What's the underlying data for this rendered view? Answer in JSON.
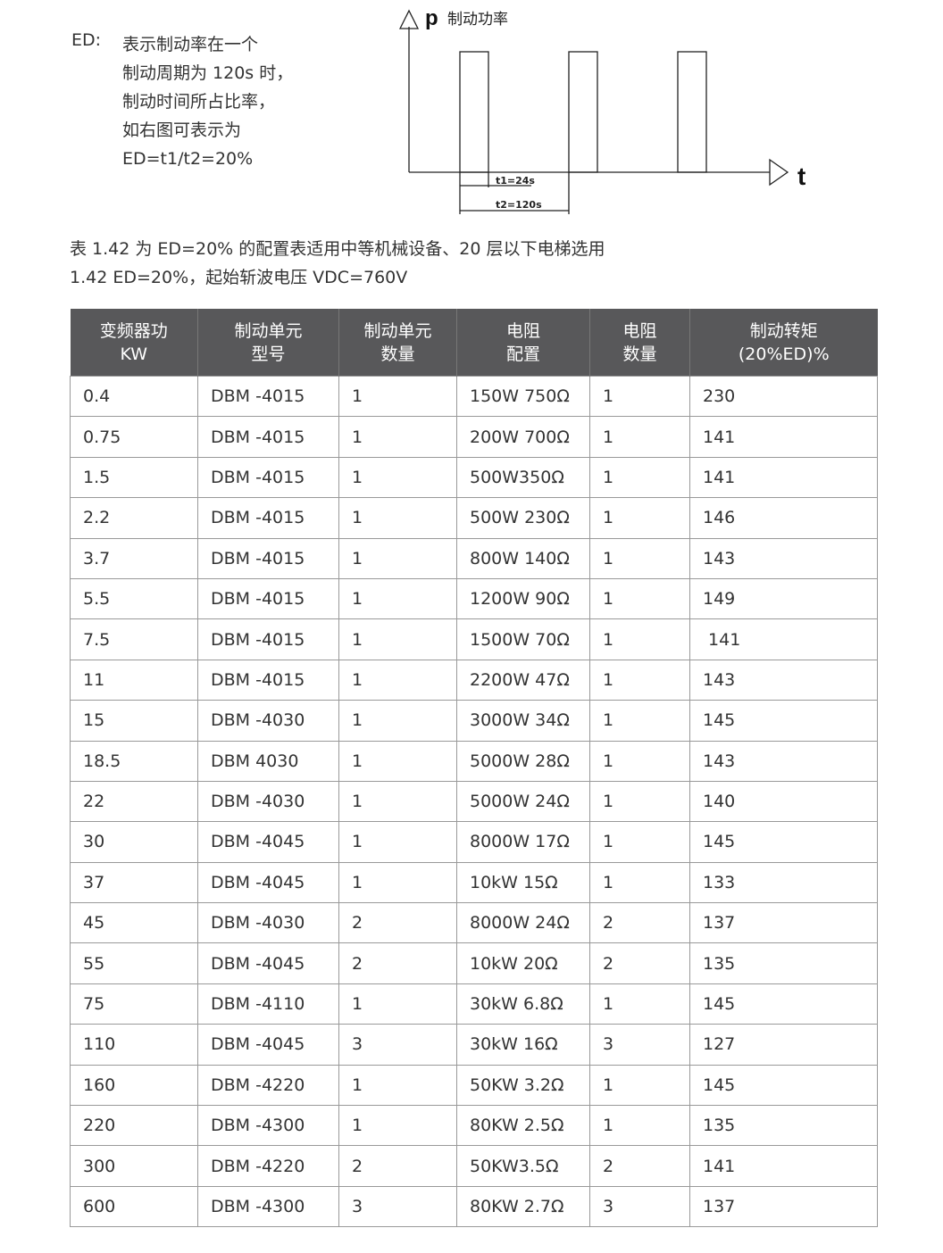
{
  "intro": {
    "label": "ED:",
    "lines": [
      "表示制动率在一个",
      "制动周期为 120s 时，",
      "制动时间所占比率，",
      "如右图可表示为",
      "ED=t1/t2=20%"
    ]
  },
  "diagram": {
    "y_label": "p",
    "y_title": "制动功率",
    "x_label": "t",
    "t1_label": "t1=24s",
    "t2_label": "t2=120s"
  },
  "captions": [
    "表 1.42 为 ED=20% 的配置表适用中等机械设备、20 层以下电梯选用",
    "1.42  ED=20%，起始斩波电压 VDC=760V"
  ],
  "table": {
    "headers": [
      [
        "变频器功",
        "KW"
      ],
      [
        "制动单元",
        "型号"
      ],
      [
        "制动单元",
        "数量"
      ],
      [
        "电阻",
        "配置"
      ],
      [
        "电阻",
        "数量"
      ],
      [
        "制动转矩",
        "(20%ED)%"
      ]
    ],
    "rows": [
      [
        "0.4",
        "DBM -4015",
        "1",
        "150W 750Ω",
        "1",
        "230"
      ],
      [
        "0.75",
        "DBM -4015",
        "1",
        "200W 700Ω",
        "1",
        "141"
      ],
      [
        "1.5",
        "DBM -4015",
        "1",
        "500W350Ω",
        "1",
        "141"
      ],
      [
        "2.2",
        "DBM -4015",
        "1",
        "500W 230Ω",
        "1",
        "146"
      ],
      [
        "3.7",
        "DBM -4015",
        "1",
        "800W 140Ω",
        "1",
        "143"
      ],
      [
        "5.5",
        "DBM -4015",
        "1",
        "1200W 90Ω",
        "1",
        "149"
      ],
      [
        "7.5",
        "DBM -4015",
        "1",
        "1500W 70Ω",
        "1",
        " 141"
      ],
      [
        "11",
        "DBM -4015",
        "1",
        "2200W 47Ω",
        "1",
        "143"
      ],
      [
        "15",
        "DBM -4030",
        "1",
        "3000W 34Ω",
        "1",
        "145"
      ],
      [
        "18.5",
        "DBM 4030",
        "1",
        "5000W 28Ω",
        "1",
        "143"
      ],
      [
        "22",
        "DBM -4030",
        "1",
        "5000W 24Ω",
        "1",
        "140"
      ],
      [
        "30",
        "DBM -4045",
        "1",
        "8000W 17Ω",
        "1",
        "145"
      ],
      [
        "37",
        "DBM -4045",
        "1",
        "10kW 15Ω",
        "1",
        "133"
      ],
      [
        "45",
        "DBM -4030",
        "2",
        "8000W 24Ω",
        "2",
        "137"
      ],
      [
        "55",
        "DBM -4045",
        "2",
        "10kW 20Ω",
        "2",
        "135"
      ],
      [
        "75",
        "DBM -4110",
        "1",
        "30kW 6.8Ω",
        "1",
        "145"
      ],
      [
        "110",
        "DBM -4045",
        "3",
        "30kW 16Ω",
        "3",
        "127"
      ],
      [
        "160",
        "DBM -4220",
        "1",
        "50KW 3.2Ω",
        "1",
        "145"
      ],
      [
        "220",
        "DBM -4300",
        "1",
        "80KW 2.5Ω",
        "1",
        "135"
      ],
      [
        "300",
        "DBM -4220",
        "2",
        "50KW3.5Ω",
        "2",
        "141"
      ],
      [
        "600",
        "DBM -4300",
        "3",
        "80KW 2.7Ω",
        "3",
        "137"
      ]
    ]
  }
}
